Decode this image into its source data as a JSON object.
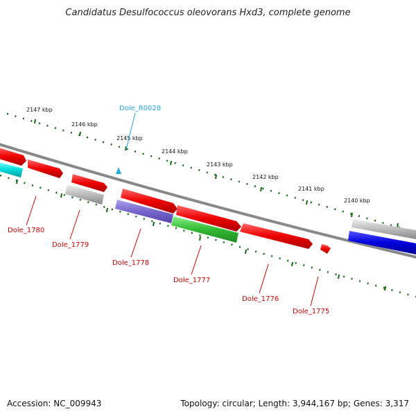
{
  "title": "Candidatus Desulfococcus oleovorans Hxd3, complete genome",
  "footer": {
    "accession": "Accession: NC_009943",
    "summary": "Topology: circular; Length: 3,944,167 bp; Genes: 3,317"
  },
  "ticks": [
    "2147 kbp",
    "2146 kbp",
    "2145 kbp",
    "2144 kbp",
    "2143 kbp",
    "2142 kbp",
    "2141 kbp",
    "2140 kbp"
  ],
  "rna_label": "Dole_R0028",
  "gene_labels": [
    "Dole_1780",
    "Dole_1779",
    "Dole_1778",
    "Dole_1777",
    "Dole_1776",
    "Dole_1775"
  ],
  "colors": {
    "forward_gene": "#ee0000",
    "reverse_gene_red": "#ee0000",
    "gray_gene": "#bbbbbb",
    "purple_gene": "#7766cc",
    "green_gene": "#33bb33",
    "blue_gene": "#0000dd",
    "cyan_gene": "#00dddd",
    "backbone": "#777777",
    "tick": "#116611",
    "rna": "#22aadd"
  }
}
